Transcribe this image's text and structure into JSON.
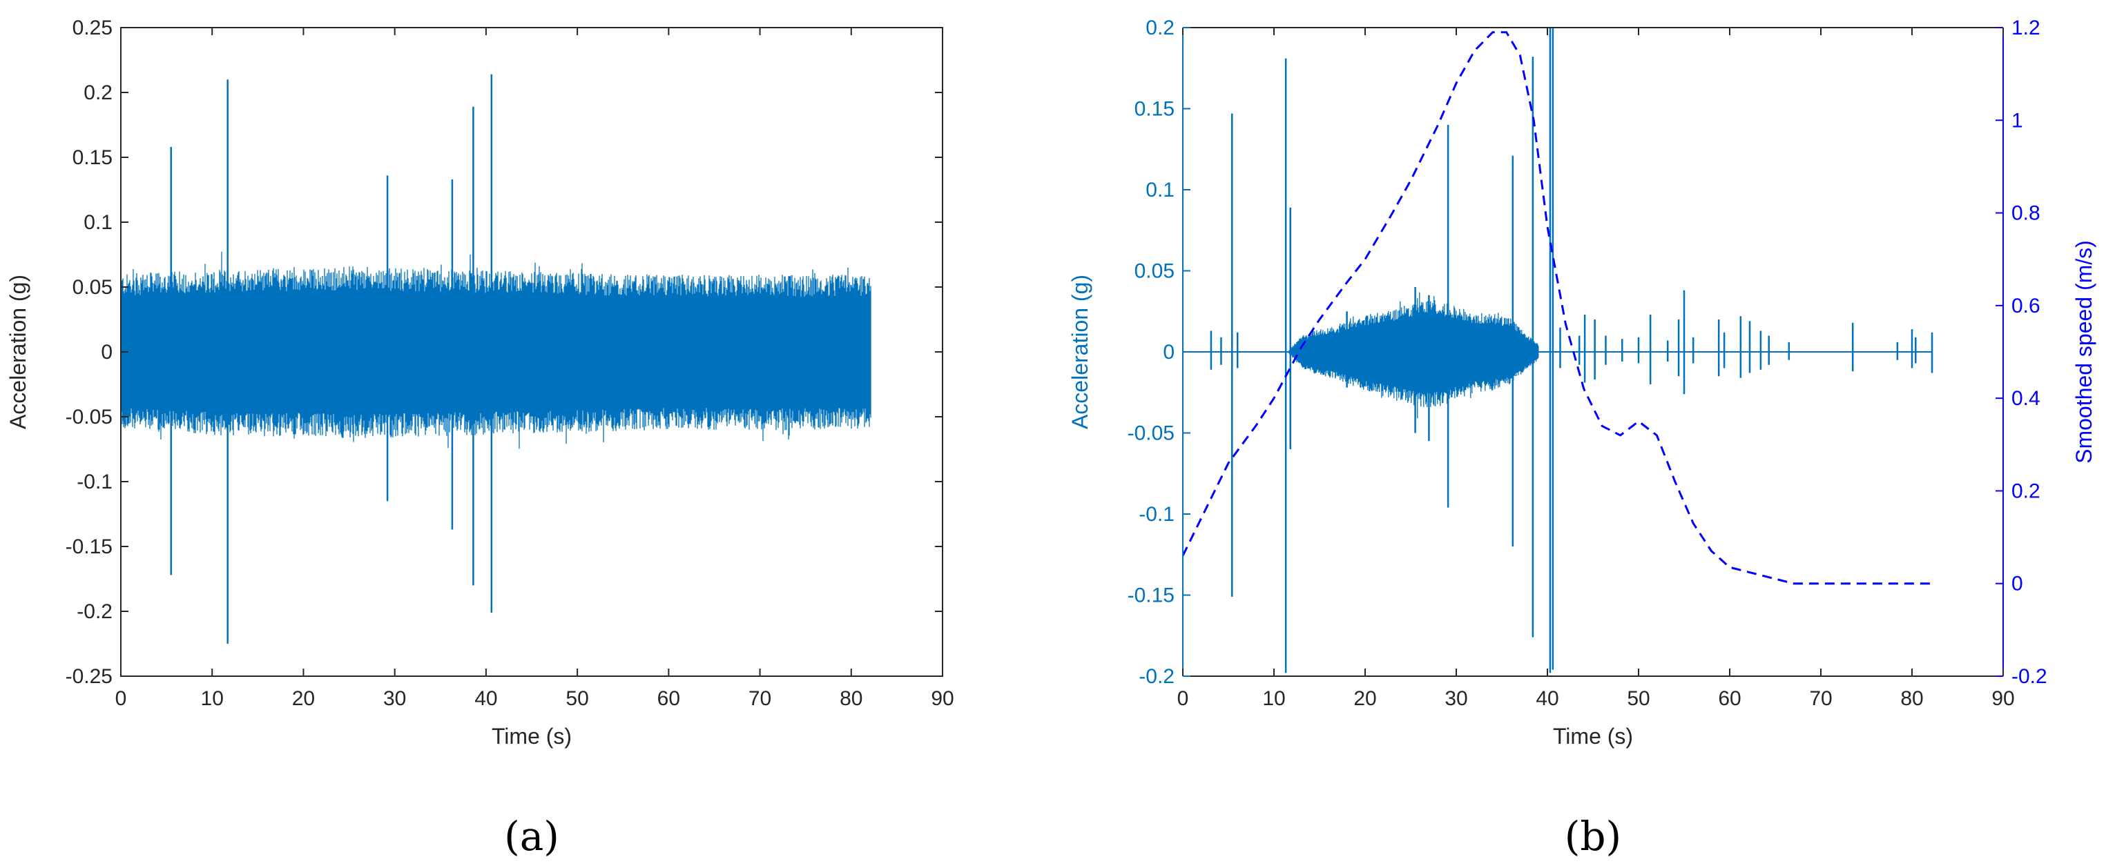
{
  "panels": [
    {
      "label": "(a)"
    },
    {
      "label": "(b)"
    }
  ],
  "colors": {
    "signal": "#0072BD",
    "speed": "#0000FF",
    "axis": "#262626"
  },
  "chart_data": [
    {
      "type": "line",
      "xlabel": "Time (s)",
      "ylabel": "Acceleration (g)",
      "xlim": [
        0,
        90
      ],
      "ylim": [
        -0.25,
        0.25
      ],
      "xticks": [
        0,
        10,
        20,
        30,
        40,
        50,
        60,
        70,
        80,
        90
      ],
      "yticks": [
        -0.25,
        -0.2,
        -0.15,
        -0.1,
        -0.05,
        0,
        0.05,
        0.1,
        0.15,
        0.2,
        0.25
      ],
      "ytick_labels": [
        "-0.25",
        "-0.2",
        "-0.15",
        "-0.1",
        "-0.05",
        "0",
        "0.05",
        "0.1",
        "0.15",
        "0.2",
        "0.25"
      ],
      "grid": false,
      "series": [
        {
          "color": "#0072BD",
          "envelope": {
            "x": [
              0,
              5,
              10,
              15,
              20,
              25,
              30,
              35,
              40,
              45,
              50,
              55,
              60,
              65,
              70,
              75,
              80,
              82.2
            ],
            "upper": [
              0.06,
              0.062,
              0.063,
              0.065,
              0.064,
              0.066,
              0.065,
              0.064,
              0.063,
              0.062,
              0.061,
              0.06,
              0.06,
              0.059,
              0.06,
              0.059,
              0.06,
              0.06
            ],
            "lower": [
              -0.06,
              -0.062,
              -0.064,
              -0.066,
              -0.065,
              -0.067,
              -0.066,
              -0.065,
              -0.064,
              -0.063,
              -0.062,
              -0.061,
              -0.06,
              -0.06,
              -0.061,
              -0.06,
              -0.06,
              -0.06
            ]
          },
          "spikes": [
            {
              "t": 5.5,
              "max": 0.158,
              "min": -0.172
            },
            {
              "t": 11.7,
              "max": 0.21,
              "min": -0.225
            },
            {
              "t": 29.2,
              "max": 0.136,
              "min": -0.115
            },
            {
              "t": 36.3,
              "max": 0.133,
              "min": -0.137
            },
            {
              "t": 38.6,
              "max": 0.189,
              "min": -0.18
            },
            {
              "t": 40.6,
              "max": 0.214,
              "min": -0.201
            }
          ]
        }
      ]
    },
    {
      "type": "line",
      "xlabel": "Time (s)",
      "ylabel": "Acceleration (g)",
      "y2label": "Smoothed speed (m/s)",
      "xlim": [
        0,
        90
      ],
      "ylim": [
        -0.2,
        0.2
      ],
      "y2lim": [
        -0.2,
        1.2
      ],
      "xticks": [
        0,
        10,
        20,
        30,
        40,
        50,
        60,
        70,
        80,
        90
      ],
      "yticks": [
        -0.2,
        -0.15,
        -0.1,
        -0.05,
        0,
        0.05,
        0.1,
        0.15,
        0.2
      ],
      "ytick_labels": [
        "-0.2",
        "-0.15",
        "-0.1",
        "-0.05",
        "0",
        "0.05",
        "0.1",
        "0.15",
        "0.2"
      ],
      "y2ticks": [
        -0.2,
        0,
        0.2,
        0.4,
        0.6,
        0.8,
        1,
        1.2
      ],
      "y2tick_labels": [
        "-0.2",
        "0",
        "0.2",
        "0.4",
        "0.6",
        "0.8",
        "1",
        "1.2"
      ],
      "grid": false,
      "series": [
        {
          "color": "#0072BD",
          "axis": "left",
          "envelope": {
            "x": [
              11.5,
              13,
              15,
              17,
              19,
              21,
              23,
              25,
              26.5,
              28,
              30,
              32,
              34,
              36,
              37.5,
              39
            ],
            "upper": [
              0,
              0.01,
              0.014,
              0.016,
              0.021,
              0.024,
              0.026,
              0.03,
              0.032,
              0.032,
              0.028,
              0.024,
              0.024,
              0.021,
              0.012,
              0.005
            ],
            "lower": [
              0,
              -0.01,
              -0.015,
              -0.017,
              -0.022,
              -0.026,
              -0.029,
              -0.033,
              -0.035,
              -0.034,
              -0.03,
              -0.025,
              -0.024,
              -0.02,
              -0.012,
              -0.005
            ]
          },
          "spikes": [
            {
              "t": 3.1,
              "max": 0.013,
              "min": -0.011
            },
            {
              "t": 4.2,
              "max": 0.009,
              "min": -0.008
            },
            {
              "t": 5.4,
              "max": 0.147,
              "min": -0.151
            },
            {
              "t": 6.0,
              "max": 0.012,
              "min": -0.01
            },
            {
              "t": 11.3,
              "max": 0.181,
              "min": -0.198
            },
            {
              "t": 11.8,
              "max": 0.089,
              "min": -0.06
            },
            {
              "t": 18.0,
              "max": 0.025,
              "min": -0.022
            },
            {
              "t": 25.5,
              "max": 0.04,
              "min": -0.05
            },
            {
              "t": 27.0,
              "max": 0.035,
              "min": -0.055
            },
            {
              "t": 29.1,
              "max": 0.14,
              "min": -0.096
            },
            {
              "t": 36.2,
              "max": 0.121,
              "min": -0.12
            },
            {
              "t": 38.4,
              "max": 0.182,
              "min": -0.176
            },
            {
              "t": 40.3,
              "max": 0.2,
              "min": -0.198
            },
            {
              "t": 40.6,
              "max": 0.2,
              "min": -0.196
            },
            {
              "t": 41.4,
              "max": 0.015,
              "min": -0.01
            },
            {
              "t": 43.5,
              "max": 0.01,
              "min": -0.008
            },
            {
              "t": 44.1,
              "max": 0.023,
              "min": -0.019
            },
            {
              "t": 45.2,
              "max": 0.02,
              "min": -0.017
            },
            {
              "t": 46.4,
              "max": 0.01,
              "min": -0.008
            },
            {
              "t": 48.2,
              "max": 0.008,
              "min": -0.006
            },
            {
              "t": 50.0,
              "max": 0.009,
              "min": -0.007
            },
            {
              "t": 51.3,
              "max": 0.023,
              "min": -0.02
            },
            {
              "t": 53.2,
              "max": 0.007,
              "min": -0.006
            },
            {
              "t": 54.4,
              "max": 0.02,
              "min": -0.015
            },
            {
              "t": 55.0,
              "max": 0.038,
              "min": -0.026
            },
            {
              "t": 56.0,
              "max": 0.009,
              "min": -0.007
            },
            {
              "t": 58.8,
              "max": 0.02,
              "min": -0.015
            },
            {
              "t": 59.4,
              "max": 0.012,
              "min": -0.01
            },
            {
              "t": 61.2,
              "max": 0.022,
              "min": -0.016
            },
            {
              "t": 62.2,
              "max": 0.019,
              "min": -0.013
            },
            {
              "t": 63.4,
              "max": 0.013,
              "min": -0.011
            },
            {
              "t": 64.3,
              "max": 0.01,
              "min": -0.008
            },
            {
              "t": 66.5,
              "max": 0.006,
              "min": -0.005
            },
            {
              "t": 73.5,
              "max": 0.018,
              "min": -0.012
            },
            {
              "t": 78.4,
              "max": 0.006,
              "min": -0.005
            },
            {
              "t": 80.0,
              "max": 0.014,
              "min": -0.01
            },
            {
              "t": 80.4,
              "max": 0.009,
              "min": -0.007
            },
            {
              "t": 82.2,
              "max": 0.012,
              "min": -0.013
            }
          ],
          "baseline_x": [
            0,
            82.2
          ]
        },
        {
          "color": "#0000FF",
          "axis": "right",
          "style": "dashed",
          "x": [
            0,
            2,
            5,
            8,
            10,
            13,
            15,
            18,
            20,
            23,
            25,
            28,
            30,
            32,
            34,
            35.5,
            37,
            38.5,
            40,
            42,
            44,
            46,
            48,
            50,
            52,
            54,
            56,
            58,
            60,
            62,
            64,
            67,
            70,
            75,
            80,
            82.2
          ],
          "y": [
            0.06,
            0.14,
            0.26,
            0.34,
            0.4,
            0.51,
            0.57,
            0.65,
            0.7,
            0.8,
            0.87,
            0.99,
            1.08,
            1.15,
            1.19,
            1.19,
            1.14,
            1.0,
            0.77,
            0.56,
            0.42,
            0.34,
            0.32,
            0.35,
            0.32,
            0.22,
            0.13,
            0.07,
            0.035,
            0.025,
            0.015,
            0.0,
            0.0,
            0.0,
            0.0,
            0.0
          ]
        }
      ]
    }
  ]
}
